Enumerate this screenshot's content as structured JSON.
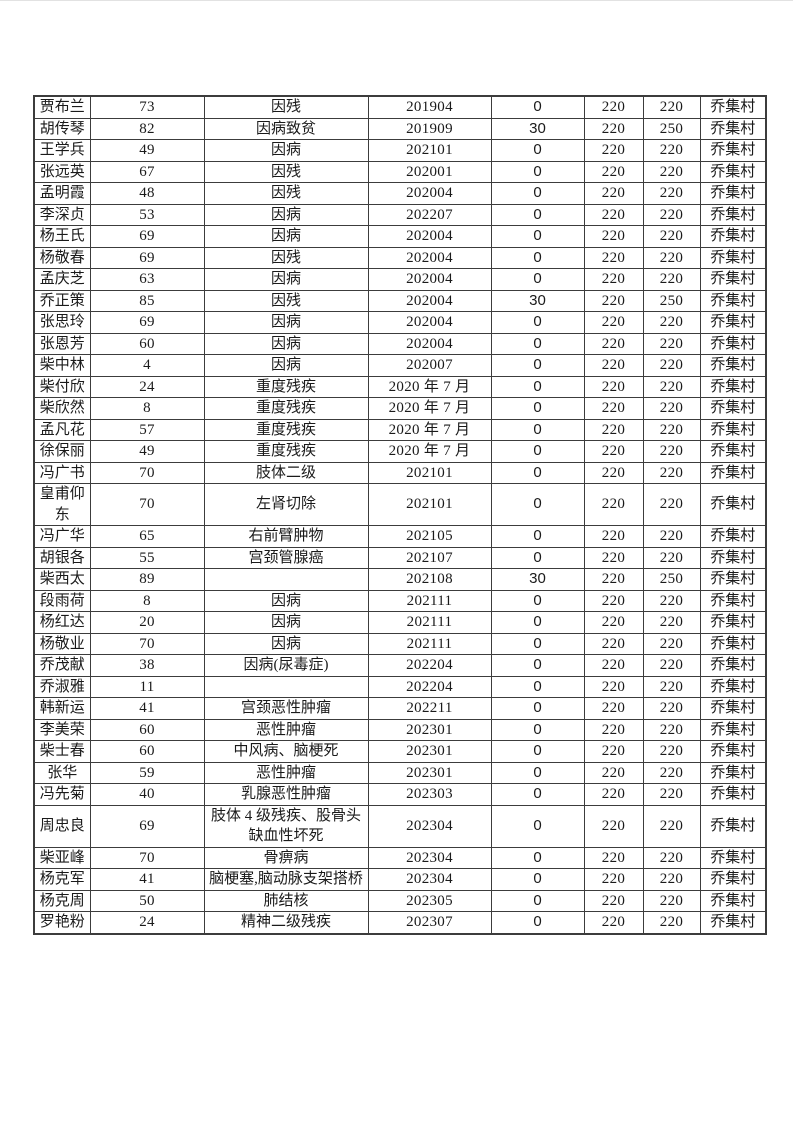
{
  "page": {
    "kind": "document-page-with-table",
    "village": "乔集村"
  },
  "colors": {
    "table_border": "#3c3c3c",
    "text": "#1a1a1a",
    "page_background": "#ffffff"
  },
  "table": {
    "column_keys": [
      "name",
      "age",
      "reason",
      "date",
      "addition",
      "base",
      "total",
      "village"
    ],
    "rows": [
      {
        "name": "贾布兰",
        "age": "73",
        "reason": "因残",
        "date": "201904",
        "addition": "0",
        "base": "220",
        "total": "220",
        "village": "乔集村"
      },
      {
        "name": "胡传琴",
        "age": "82",
        "reason": "因病致贫",
        "date": "201909",
        "addition": "30",
        "base": "220",
        "total": "250",
        "village": "乔集村"
      },
      {
        "name": "王学兵",
        "age": "49",
        "reason": "因病",
        "date": "202101",
        "addition": "0",
        "base": "220",
        "total": "220",
        "village": "乔集村"
      },
      {
        "name": "张远英",
        "age": "67",
        "reason": "因残",
        "date": "202001",
        "addition": "0",
        "base": "220",
        "total": "220",
        "village": "乔集村"
      },
      {
        "name": "孟明霞",
        "age": "48",
        "reason": "因残",
        "date": "202004",
        "addition": "0",
        "base": "220",
        "total": "220",
        "village": "乔集村"
      },
      {
        "name": "李深贞",
        "age": "53",
        "reason": "因病",
        "date": "202207",
        "addition": "0",
        "base": "220",
        "total": "220",
        "village": "乔集村"
      },
      {
        "name": "杨王氏",
        "age": "69",
        "reason": "因病",
        "date": "202004",
        "addition": "0",
        "base": "220",
        "total": "220",
        "village": "乔集村"
      },
      {
        "name": "杨敬春",
        "age": "69",
        "reason": "因残",
        "date": "202004",
        "addition": "0",
        "base": "220",
        "total": "220",
        "village": "乔集村"
      },
      {
        "name": "孟庆芝",
        "age": "63",
        "reason": "因病",
        "date": "202004",
        "addition": "0",
        "base": "220",
        "total": "220",
        "village": "乔集村"
      },
      {
        "name": "乔正策",
        "age": "85",
        "reason": "因残",
        "date": "202004",
        "addition": "30",
        "base": "220",
        "total": "250",
        "village": "乔集村"
      },
      {
        "name": "张思玲",
        "age": "69",
        "reason": "因病",
        "date": "202004",
        "addition": "0",
        "base": "220",
        "total": "220",
        "village": "乔集村"
      },
      {
        "name": "张恩芳",
        "age": "60",
        "reason": "因病",
        "date": "202004",
        "addition": "0",
        "base": "220",
        "total": "220",
        "village": "乔集村"
      },
      {
        "name": "柴中林",
        "age": "4",
        "reason": "因病",
        "date": "202007",
        "addition": "0",
        "base": "220",
        "total": "220",
        "village": "乔集村"
      },
      {
        "name": "柴付欣",
        "age": "24",
        "reason": "重度残疾",
        "date": "2020 年 7 月",
        "addition": "0",
        "base": "220",
        "total": "220",
        "village": "乔集村"
      },
      {
        "name": "柴欣然",
        "age": "8",
        "reason": "重度残疾",
        "date": "2020 年 7 月",
        "addition": "0",
        "base": "220",
        "total": "220",
        "village": "乔集村"
      },
      {
        "name": "孟凡花",
        "age": "57",
        "reason": "重度残疾",
        "date": "2020 年 7 月",
        "addition": "0",
        "base": "220",
        "total": "220",
        "village": "乔集村"
      },
      {
        "name": "徐保丽",
        "age": "49",
        "reason": "重度残疾",
        "date": "2020 年 7 月",
        "addition": "0",
        "base": "220",
        "total": "220",
        "village": "乔集村"
      },
      {
        "name": "冯广书",
        "age": "70",
        "reason": "肢体二级",
        "date": "202101",
        "addition": "0",
        "base": "220",
        "total": "220",
        "village": "乔集村"
      },
      {
        "name": "皇甫仰东",
        "age": "70",
        "reason": "左肾切除",
        "date": "202101",
        "addition": "0",
        "base": "220",
        "total": "220",
        "village": "乔集村"
      },
      {
        "name": "冯广华",
        "age": "65",
        "reason": "右前臂肿物",
        "date": "202105",
        "addition": "0",
        "base": "220",
        "total": "220",
        "village": "乔集村"
      },
      {
        "name": "胡银各",
        "age": "55",
        "reason": "宫颈管腺癌",
        "date": "202107",
        "addition": "0",
        "base": "220",
        "total": "220",
        "village": "乔集村"
      },
      {
        "name": "柴西太",
        "age": "89",
        "reason": "",
        "date": "202108",
        "addition": "30",
        "base": "220",
        "total": "250",
        "village": "乔集村"
      },
      {
        "name": "段雨荷",
        "age": "8",
        "reason": "因病",
        "date": "202111",
        "addition": "0",
        "base": "220",
        "total": "220",
        "village": "乔集村"
      },
      {
        "name": "杨红达",
        "age": "20",
        "reason": "因病",
        "date": "202111",
        "addition": "0",
        "base": "220",
        "total": "220",
        "village": "乔集村"
      },
      {
        "name": "杨敬业",
        "age": "70",
        "reason": "因病",
        "date": "202111",
        "addition": "0",
        "base": "220",
        "total": "220",
        "village": "乔集村"
      },
      {
        "name": "乔茂献",
        "age": "38",
        "reason": "因病(尿毒症)",
        "date": "202204",
        "addition": "0",
        "base": "220",
        "total": "220",
        "village": "乔集村"
      },
      {
        "name": "乔淑雅",
        "age": "11",
        "reason": "",
        "date": "202204",
        "addition": "0",
        "base": "220",
        "total": "220",
        "village": "乔集村"
      },
      {
        "name": "韩新运",
        "age": "41",
        "reason": "宫颈恶性肿瘤",
        "date": "202211",
        "addition": "0",
        "base": "220",
        "total": "220",
        "village": "乔集村"
      },
      {
        "name": "李美荣",
        "age": "60",
        "reason": "恶性肿瘤",
        "date": "202301",
        "addition": "0",
        "base": "220",
        "total": "220",
        "village": "乔集村"
      },
      {
        "name": "柴士春",
        "age": "60",
        "reason": "中风病、脑梗死",
        "date": "202301",
        "addition": "0",
        "base": "220",
        "total": "220",
        "village": "乔集村"
      },
      {
        "name": "张华",
        "age": "59",
        "reason": "恶性肿瘤",
        "date": "202301",
        "addition": "0",
        "base": "220",
        "total": "220",
        "village": "乔集村"
      },
      {
        "name": "冯先菊",
        "age": "40",
        "reason": "乳腺恶性肿瘤",
        "date": "202303",
        "addition": "0",
        "base": "220",
        "total": "220",
        "village": "乔集村"
      },
      {
        "name": "周忠良",
        "age": "69",
        "reason": "肢体 4 级残疾、股骨头缺血性坏死",
        "date": "202304",
        "addition": "0",
        "base": "220",
        "total": "220",
        "village": "乔集村"
      },
      {
        "name": "柴亚峰",
        "age": "70",
        "reason": "骨痹病",
        "date": "202304",
        "addition": "0",
        "base": "220",
        "total": "220",
        "village": "乔集村"
      },
      {
        "name": "杨克军",
        "age": "41",
        "reason": "脑梗塞,脑动脉支架搭桥",
        "date": "202304",
        "addition": "0",
        "base": "220",
        "total": "220",
        "village": "乔集村"
      },
      {
        "name": "杨克周",
        "age": "50",
        "reason": "肺结核",
        "date": "202305",
        "addition": "0",
        "base": "220",
        "total": "220",
        "village": "乔集村"
      },
      {
        "name": "罗艳粉",
        "age": "24",
        "reason": "精神二级残疾",
        "date": "202307",
        "addition": "0",
        "base": "220",
        "total": "220",
        "village": "乔集村"
      }
    ]
  }
}
